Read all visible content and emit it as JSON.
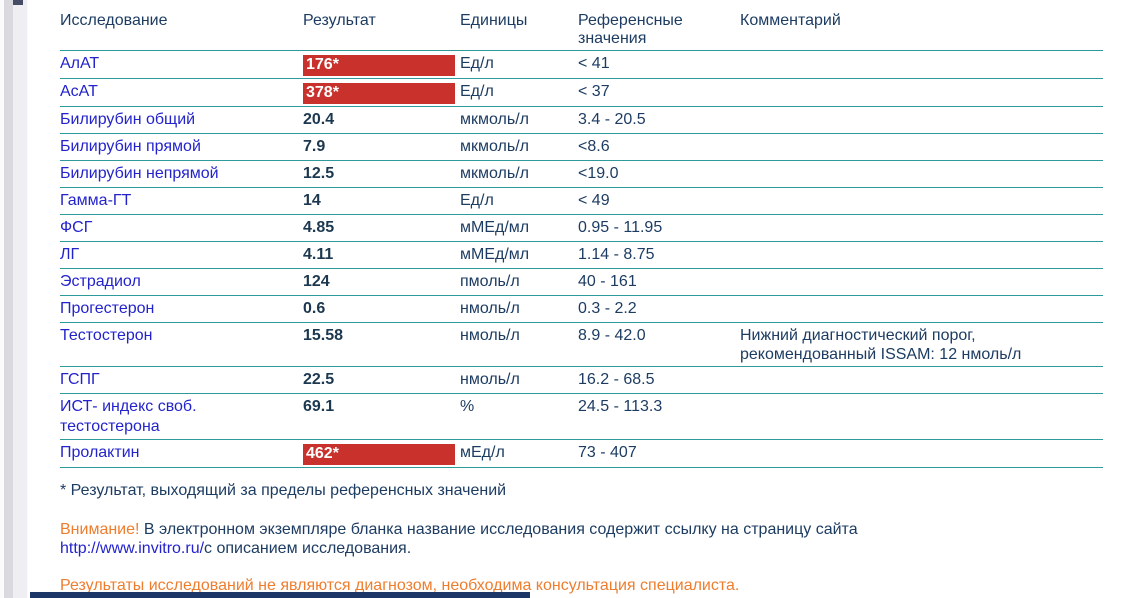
{
  "table": {
    "headers": [
      "Исследование",
      "Результат",
      "Единицы",
      "Референсные значения",
      "Комментарий"
    ],
    "rows": [
      {
        "name": "АлАТ",
        "result": "176*",
        "flagged": true,
        "units": "Ед/л",
        "ref": "< 41",
        "comment": ""
      },
      {
        "name": "АсАТ",
        "result": "378*",
        "flagged": true,
        "units": "Ед/л",
        "ref": "< 37",
        "comment": ""
      },
      {
        "name": "Билирубин общий",
        "result": "20.4",
        "flagged": false,
        "units": "мкмоль/л",
        "ref": "3.4 - 20.5",
        "comment": ""
      },
      {
        "name": "Билирубин прямой",
        "result": "7.9",
        "flagged": false,
        "units": "мкмоль/л",
        "ref": "<8.6",
        "comment": ""
      },
      {
        "name": "Билирубин непрямой",
        "result": "12.5",
        "flagged": false,
        "units": "мкмоль/л",
        "ref": "<19.0",
        "comment": ""
      },
      {
        "name": "Гамма-ГТ",
        "result": "14",
        "flagged": false,
        "units": "Ед/л",
        "ref": "< 49",
        "comment": ""
      },
      {
        "name": "ФСГ",
        "result": "4.85",
        "flagged": false,
        "units": "мМЕд/мл",
        "ref": "0.95 - 11.95",
        "comment": ""
      },
      {
        "name": "ЛГ",
        "result": "4.11",
        "flagged": false,
        "units": "мМЕд/мл",
        "ref": "1.14 - 8.75",
        "comment": ""
      },
      {
        "name": "Эстрадиол",
        "result": "124",
        "flagged": false,
        "units": "пмоль/л",
        "ref": "40 - 161",
        "comment": ""
      },
      {
        "name": "Прогестерон",
        "result": "0.6",
        "flagged": false,
        "units": "нмоль/л",
        "ref": "0.3 - 2.2",
        "comment": ""
      },
      {
        "name": "Тестостерон",
        "result": "15.58",
        "flagged": false,
        "units": "нмоль/л",
        "ref": "8.9 - 42.0",
        "comment": "Нижний диагностический порог, рекомендованный ISSAM: 12 нмоль/л"
      },
      {
        "name": "ГСПГ",
        "result": "22.5",
        "flagged": false,
        "units": "нмоль/л",
        "ref": "16.2 - 68.5",
        "comment": ""
      },
      {
        "name": "ИСТ- индекс своб. тестостерона",
        "result": "69.1",
        "flagged": false,
        "units": "%",
        "ref": "24.5 - 113.3",
        "comment": ""
      },
      {
        "name": "Пролактин",
        "result": "462*",
        "flagged": true,
        "units": "мЕд/л",
        "ref": "73 - 407",
        "comment": ""
      }
    ]
  },
  "footer": {
    "footnote": "* Результат, выходящий за пределы референсных значений",
    "attention_label": "Внимание!",
    "attention_text": " В электронном экземпляре бланка название исследования содержит ссылку на страницу сайта",
    "link": "http://www.invitro.ru/",
    "attention_tail": "с описанием исследования.",
    "disclaimer": "Результаты исследований не являются диагнозом, необходима консультация специалиста."
  },
  "colors": {
    "accent_navy": "#1d3c62",
    "link_blue": "#2323cc",
    "flag_red": "#c9322c",
    "line_teal": "#2f9a9a",
    "warning_orange": "#ee7d2e",
    "bottom_bar_navy": "#1c3668"
  }
}
